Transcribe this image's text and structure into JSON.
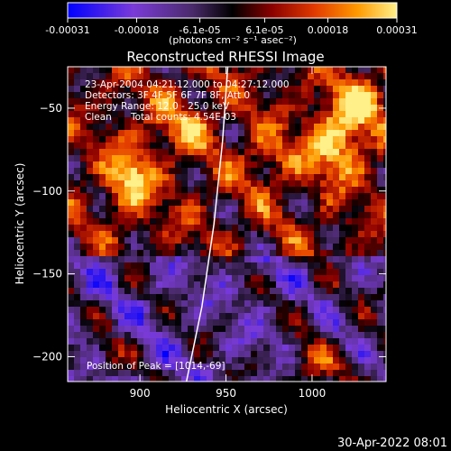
{
  "colorbar": {
    "tick_labels": [
      "-0.00031",
      "-0.00018",
      "-6.1e-05",
      "6.1e-05",
      "0.00018",
      "0.00031"
    ],
    "tick_values": [
      -0.00031,
      -0.00018,
      -6.1e-05,
      6.1e-05,
      0.00018,
      0.00031
    ],
    "range": [
      -0.00031,
      0.00031
    ],
    "units": "(photons cm⁻² s⁻¹ asec⁻²)"
  },
  "chart_data": {
    "type": "heatmap",
    "title": "Reconstructed RHESSI Image",
    "xlabel": "Heliocentric X (arcsec)",
    "ylabel": "Heliocentric Y (arcsec)",
    "xlim": [
      858,
      1043
    ],
    "ylim": [
      -215,
      -25
    ],
    "x_ticks": [
      900,
      950,
      1000
    ],
    "x_tick_labels": [
      "900",
      "950",
      "1000"
    ],
    "y_ticks": [
      -50,
      -100,
      -150,
      -200
    ],
    "y_tick_labels": [
      "−50",
      "−100",
      "−150",
      "−200"
    ],
    "colormap_colors": [
      "#0000ff",
      "#7a3bd8",
      "#4a2a6a",
      "#000000",
      "#8a0000",
      "#e23a00",
      "#ff9a00",
      "#fff08a"
    ],
    "hotspots": [
      {
        "x": 895,
        "y": -93,
        "amp": 1.0,
        "sx": 9,
        "sy": 14
      },
      {
        "x": 1015,
        "y": -70,
        "amp": 1.0,
        "sx": 12,
        "sy": 16
      },
      {
        "x": 1030,
        "y": -45,
        "amp": 0.85,
        "sx": 10,
        "sy": 10
      },
      {
        "x": 1000,
        "y": -205,
        "amp": 0.6,
        "sx": 14,
        "sy": 8
      },
      {
        "x": 925,
        "y": -60,
        "amp": 0.55,
        "sx": 14,
        "sy": 12
      },
      {
        "x": 975,
        "y": -80,
        "amp": 0.45,
        "sx": 12,
        "sy": 12
      },
      {
        "x": 880,
        "y": -200,
        "amp": 0.5,
        "sx": 8,
        "sy": 8
      }
    ],
    "annotations": {
      "time_range": "23-Apr-2004 04:21:12.000 to 04:27:12.000",
      "detectors": "Detectors: 3F 4F 5F 6F 7F 8F, Att 0",
      "energy_range": "Energy Range: 12.0 - 25.0 keV",
      "method": "Clean",
      "total_counts": "Total counts: 4.54E-03",
      "peak_position": "Position of Peak = [1014,-69]"
    },
    "limb_curve": [
      {
        "x": 951,
        "y": -25
      },
      {
        "x": 948,
        "y": -70
      },
      {
        "x": 943,
        "y": -120
      },
      {
        "x": 936,
        "y": -170
      },
      {
        "x": 927,
        "y": -215
      }
    ]
  },
  "footer": {
    "timestamp": "30-Apr-2022 08:01"
  }
}
